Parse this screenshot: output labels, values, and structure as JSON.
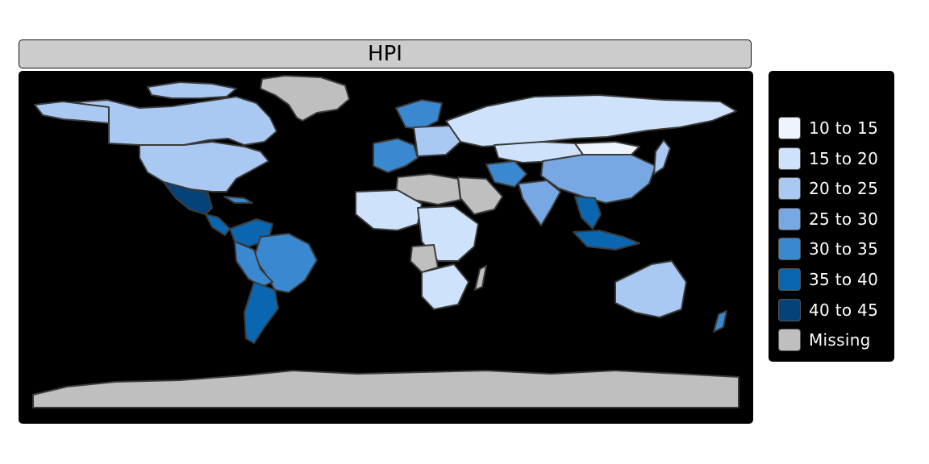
{
  "map": {
    "title": "HPI",
    "background": "#000000",
    "border_color": "#3a3a3a",
    "missing_color": "#bfbfbf"
  },
  "legend": {
    "items": [
      {
        "label": "10 to 15",
        "color": "#eef4fd"
      },
      {
        "label": "15 to 20",
        "color": "#cfe2fb"
      },
      {
        "label": "20 to 25",
        "color": "#a9c9f3"
      },
      {
        "label": "25 to 30",
        "color": "#77a8e3"
      },
      {
        "label": "30 to 35",
        "color": "#3a88d0"
      },
      {
        "label": "35 to 40",
        "color": "#0b66b0"
      },
      {
        "label": "40 to 45",
        "color": "#06427a"
      },
      {
        "label": "Missing",
        "color": "#bfbfbf"
      }
    ]
  }
}
